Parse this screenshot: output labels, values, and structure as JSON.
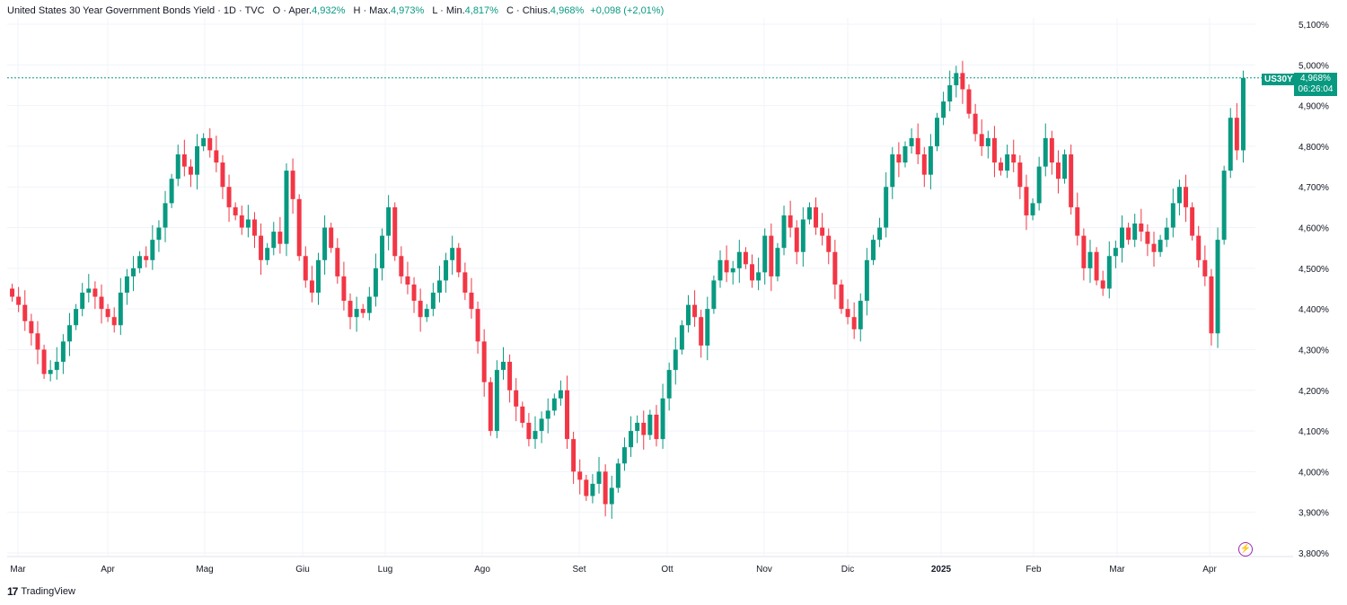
{
  "legend": {
    "symbol": "United States 30 Year Government Bonds Yield · 1D · TVC",
    "open_label": "O · Aper.",
    "open": "4,932%",
    "high_label": "H · Max.",
    "high": "4,973%",
    "low_label": "L · Min.",
    "low": "4,817%",
    "close_label": "C · Chius.",
    "close": "4,968%",
    "change": "+0,098 (+2,01%)"
  },
  "price_tag": {
    "symbol": "US30Y",
    "price": "4,968%",
    "countdown": "06:26:04"
  },
  "brand": "TradingView",
  "colors": {
    "up": "#089981",
    "down": "#f23645",
    "grid": "#f0f3fa",
    "text": "#131722",
    "accent": "#9c27b0"
  },
  "chart_data": {
    "type": "candlestick",
    "y_range": [
      3.78,
      5.12
    ],
    "y_ticks": [
      "5,100%",
      "5,000%",
      "4,900%",
      "4,800%",
      "4,700%",
      "4,600%",
      "4,500%",
      "4,400%",
      "4,300%",
      "4,200%",
      "4,100%",
      "4,000%",
      "3,900%",
      "3,800%"
    ],
    "x_labels": [
      "Mar",
      "Apr",
      "Mag",
      "Giu",
      "Lug",
      "Ago",
      "Set",
      "Ott",
      "Nov",
      "Dic",
      "2025",
      "Feb",
      "Mar",
      "Apr"
    ],
    "last_price": 4.968,
    "closes": [
      4.43,
      4.41,
      4.37,
      4.34,
      4.3,
      4.24,
      4.25,
      4.27,
      4.32,
      4.36,
      4.4,
      4.44,
      4.45,
      4.43,
      4.4,
      4.38,
      4.36,
      4.44,
      4.48,
      4.5,
      4.53,
      4.52,
      4.57,
      4.6,
      4.66,
      4.72,
      4.78,
      4.75,
      4.73,
      4.8,
      4.82,
      4.79,
      4.76,
      4.7,
      4.65,
      4.63,
      4.6,
      4.62,
      4.58,
      4.52,
      4.55,
      4.59,
      4.56,
      4.74,
      4.67,
      4.53,
      4.47,
      4.44,
      4.52,
      4.6,
      4.55,
      4.48,
      4.42,
      4.38,
      4.4,
      4.39,
      4.43,
      4.5,
      4.58,
      4.65,
      4.53,
      4.48,
      4.46,
      4.42,
      4.38,
      4.4,
      4.44,
      4.47,
      4.52,
      4.55,
      4.49,
      4.44,
      4.4,
      4.32,
      4.22,
      4.1,
      4.25,
      4.27,
      4.2,
      4.16,
      4.12,
      4.08,
      4.1,
      4.13,
      4.15,
      4.18,
      4.2,
      4.08,
      4.0,
      3.98,
      3.94,
      3.97,
      4.0,
      3.92,
      3.96,
      4.02,
      4.06,
      4.1,
      4.12,
      4.09,
      4.14,
      4.08,
      4.18,
      4.25,
      4.3,
      4.36,
      4.41,
      4.38,
      4.31,
      4.4,
      4.47,
      4.52,
      4.49,
      4.5,
      4.54,
      4.51,
      4.47,
      4.49,
      4.58,
      4.48,
      4.55,
      4.63,
      4.6,
      4.54,
      4.62,
      4.65,
      4.6,
      4.58,
      4.54,
      4.46,
      4.4,
      4.38,
      4.35,
      4.42,
      4.52,
      4.57,
      4.6,
      4.7,
      4.78,
      4.76,
      4.8,
      4.82,
      4.78,
      4.73,
      4.8,
      4.87,
      4.91,
      4.95,
      4.98,
      4.94,
      4.88,
      4.83,
      4.8,
      4.82,
      4.76,
      4.74,
      4.78,
      4.76,
      4.7,
      4.63,
      4.66,
      4.75,
      4.82,
      4.76,
      4.72,
      4.78,
      4.65,
      4.58,
      4.5,
      4.54,
      4.47,
      4.45,
      4.53,
      4.55,
      4.6,
      4.57,
      4.61,
      4.59,
      4.56,
      4.54,
      4.57,
      4.6,
      4.66,
      4.7,
      4.65,
      4.58,
      4.52,
      4.48,
      4.34,
      4.57,
      4.74,
      4.87,
      4.79,
      4.968
    ],
    "series": [
      {
        "name": "US30Y"
      }
    ]
  }
}
